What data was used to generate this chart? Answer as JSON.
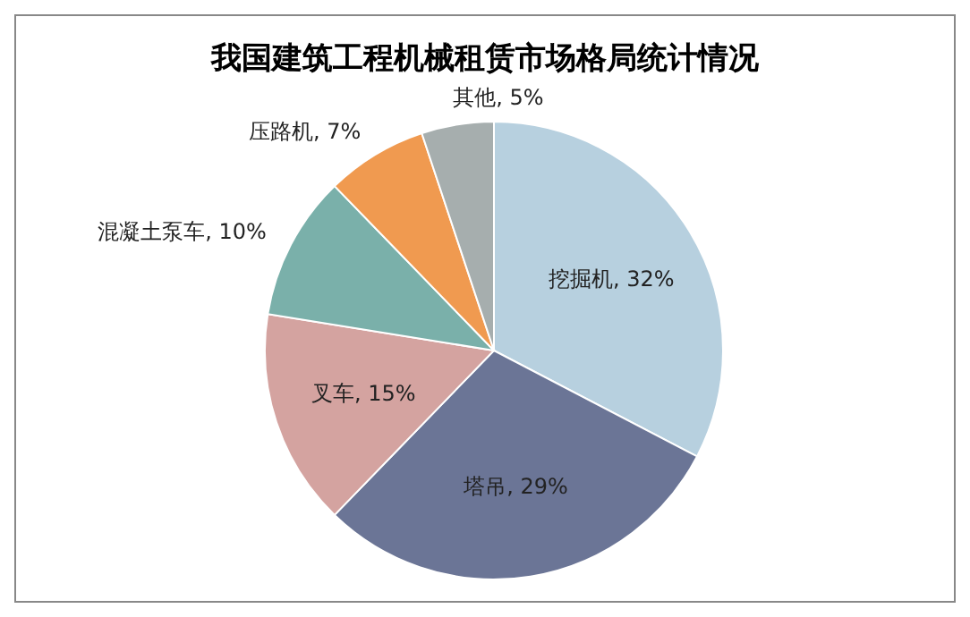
{
  "chart_data": {
    "type": "pie",
    "title": "我国建筑工程机械租赁市场格局统计情况",
    "categories": [
      "挖掘机",
      "塔吊",
      "叉车",
      "混凝土泵车",
      "压路机",
      "其他"
    ],
    "values": [
      32,
      29,
      15,
      10,
      7,
      5
    ],
    "value_labels": [
      "32%",
      "29%",
      "15%",
      "10%",
      "7%",
      "5%"
    ],
    "colors": [
      "#b7d0df",
      "#6b7596",
      "#d4a3a0",
      "#7ab0aa",
      "#f09a50",
      "#a6aeae"
    ]
  }
}
